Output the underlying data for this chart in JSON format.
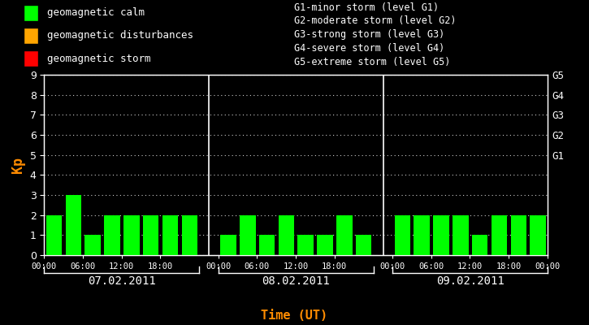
{
  "background_color": "#000000",
  "bar_color": "#00ff00",
  "text_color": "#ffffff",
  "orange_color": "#ff8c00",
  "kp_day1": [
    2,
    3,
    1,
    2,
    2,
    2,
    2,
    2
  ],
  "kp_day2": [
    1,
    2,
    1,
    2,
    1,
    1,
    2,
    1
  ],
  "kp_day3": [
    2,
    2,
    2,
    2,
    1,
    2,
    2,
    2
  ],
  "ylim": [
    0,
    9
  ],
  "yticks": [
    0,
    1,
    2,
    3,
    4,
    5,
    6,
    7,
    8,
    9
  ],
  "g_labels": [
    "G1",
    "G2",
    "G3",
    "G4",
    "G5"
  ],
  "g_positions": [
    5,
    6,
    7,
    8,
    9
  ],
  "legend_items": [
    {
      "label": "geomagnetic calm",
      "color": "#00ff00"
    },
    {
      "label": "geomagnetic disturbances",
      "color": "#ffa500"
    },
    {
      "label": "geomagnetic storm",
      "color": "#ff0000"
    }
  ],
  "storm_lines": [
    "G1-minor storm (level G1)",
    "G2-moderate storm (level G2)",
    "G3-strong storm (level G3)",
    "G4-severe storm (level G4)",
    "G5-extreme storm (level G5)"
  ],
  "days": [
    "07.02.2011",
    "08.02.2011",
    "09.02.2011"
  ],
  "time_labels": [
    "00:00",
    "06:00",
    "12:00",
    "18:00",
    "00:00",
    "06:00",
    "12:00",
    "18:00",
    "00:00",
    "06:00",
    "12:00",
    "18:00",
    "00:00"
  ],
  "xlabel": "Time (UT)",
  "ylabel": "Kp"
}
